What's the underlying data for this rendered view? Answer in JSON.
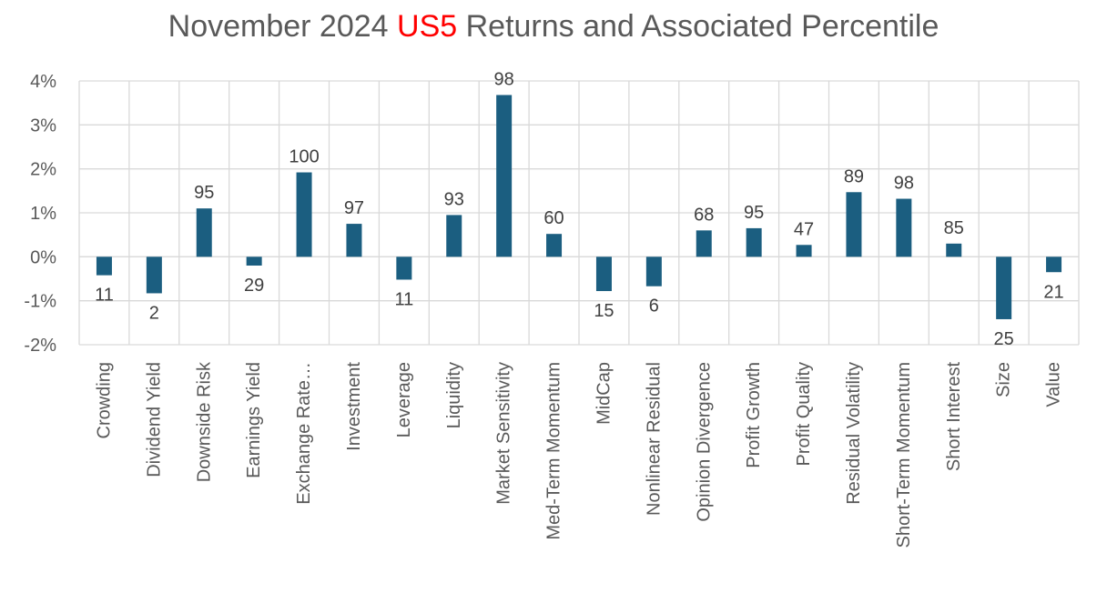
{
  "chart_data": {
    "type": "bar",
    "title_parts": [
      "November 2024 ",
      "US5",
      " Returns and Associated Percentile"
    ],
    "title_highlight_color": "#ff0000",
    "bar_color": "#1b5e80",
    "ylim": [
      -2,
      4
    ],
    "yticks": [
      -2,
      -1,
      0,
      1,
      2,
      3,
      4
    ],
    "ytick_labels": [
      "-2%",
      "-1%",
      "0%",
      "1%",
      "2%",
      "3%",
      "4%"
    ],
    "grid": true,
    "categories": [
      "Crowding",
      "Dividend Yield",
      "Downside Risk",
      "Earnings Yield",
      "Exchange Rate…",
      "Investment",
      "Leverage",
      "Liquidity",
      "Market Sensitivity",
      "Med-Term Momentum",
      "MidCap",
      "Nonlinear Residual",
      "Opinion Divergence",
      "Profit Growth",
      "Profit Quality",
      "Residual Volatility",
      "Short-Term Momentum",
      "Short Interest",
      "Size",
      "Value"
    ],
    "values": [
      -0.42,
      -0.83,
      1.1,
      -0.2,
      1.92,
      0.75,
      -0.52,
      0.95,
      3.68,
      0.52,
      -0.78,
      -0.67,
      0.6,
      0.65,
      0.27,
      1.47,
      1.32,
      0.3,
      -1.42,
      -0.35
    ],
    "percentiles": [
      "11",
      "2",
      "95",
      "29",
      "100",
      "97",
      "11",
      "93",
      "98",
      "60",
      "15",
      "6",
      "68",
      "95",
      "47",
      "89",
      "98",
      "85",
      "25",
      "21"
    ]
  }
}
